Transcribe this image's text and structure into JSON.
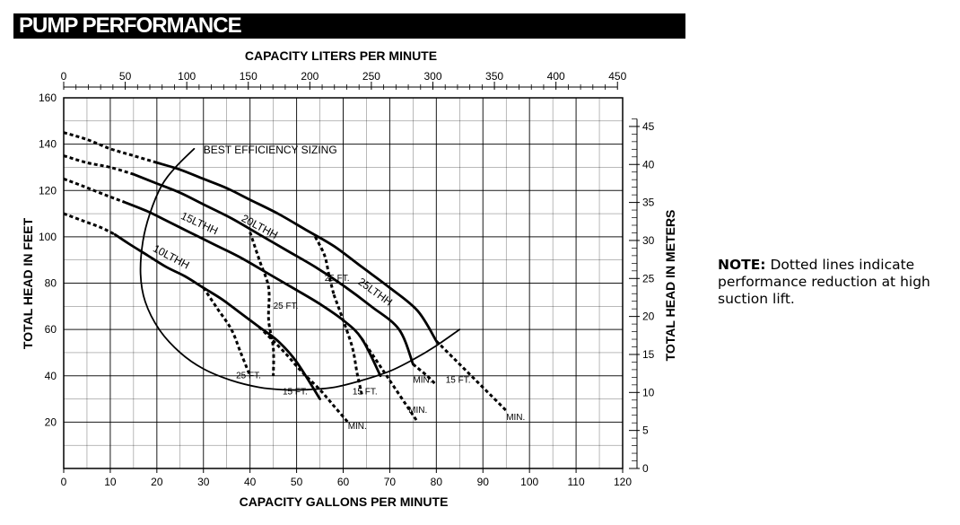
{
  "title": "PUMP PERFORMANCE",
  "note": {
    "label": "NOTE:",
    "text": "Dotted lines indicate performance reduction at high suction lift."
  },
  "chart_data": {
    "type": "line",
    "title": "PUMP PERFORMANCE",
    "xlabel": "CAPACITY GALLONS PER MINUTE",
    "ylabel": "TOTAL HEAD IN FEET",
    "x2label": "CAPACITY LITERS PER MINUTE",
    "y2label": "TOTAL HEAD IN METERS",
    "xlim": [
      0,
      120
    ],
    "ylim": [
      0,
      160
    ],
    "x_ticks": [
      0,
      10,
      20,
      30,
      40,
      50,
      60,
      70,
      80,
      90,
      100,
      110,
      120
    ],
    "y_ticks": [
      20,
      40,
      60,
      80,
      100,
      120,
      140,
      160
    ],
    "x2_ticks": [
      0,
      50,
      100,
      150,
      200,
      250,
      300,
      350,
      400,
      450
    ],
    "y2_ticks": [
      0,
      5,
      10,
      15,
      20,
      25,
      30,
      35,
      40,
      45
    ],
    "grid": true,
    "series": [
      {
        "name": "10LTHH",
        "style": "solid",
        "points": [
          [
            11,
            101
          ],
          [
            14,
            97
          ],
          [
            18,
            92
          ],
          [
            22,
            87
          ],
          [
            26,
            83
          ],
          [
            30,
            78
          ],
          [
            34,
            73
          ],
          [
            38,
            67
          ],
          [
            42,
            61
          ],
          [
            46,
            55
          ],
          [
            50,
            46
          ],
          [
            55,
            30
          ]
        ]
      },
      {
        "name": "10LTHH-high-lift",
        "style": "dotted",
        "points": [
          [
            0,
            110
          ],
          [
            4,
            107
          ],
          [
            8,
            104
          ],
          [
            11,
            101
          ]
        ]
      },
      {
        "name": "15LTHH",
        "style": "solid",
        "points": [
          [
            13,
            115
          ],
          [
            18,
            111
          ],
          [
            22,
            107
          ],
          [
            27,
            102
          ],
          [
            32,
            97
          ],
          [
            38,
            91
          ],
          [
            44,
            84
          ],
          [
            50,
            77
          ],
          [
            55,
            71
          ],
          [
            60,
            64
          ],
          [
            64,
            56
          ],
          [
            68,
            40
          ]
        ]
      },
      {
        "name": "15LTHH-high-lift",
        "style": "dotted",
        "points": [
          [
            0,
            125
          ],
          [
            4,
            122
          ],
          [
            9,
            118
          ],
          [
            13,
            115
          ]
        ]
      },
      {
        "name": "20LTHH",
        "style": "solid",
        "points": [
          [
            15,
            127
          ],
          [
            20,
            123
          ],
          [
            25,
            119
          ],
          [
            30,
            114
          ],
          [
            36,
            108
          ],
          [
            42,
            101
          ],
          [
            48,
            94
          ],
          [
            54,
            87
          ],
          [
            60,
            79
          ],
          [
            66,
            70
          ],
          [
            72,
            60
          ],
          [
            75,
            45
          ]
        ]
      },
      {
        "name": "20LTHH-high-lift",
        "style": "dotted",
        "points": [
          [
            0,
            135
          ],
          [
            5,
            132
          ],
          [
            10,
            130
          ],
          [
            15,
            127
          ]
        ]
      },
      {
        "name": "25LTHH",
        "style": "solid",
        "points": [
          [
            20,
            132
          ],
          [
            25,
            129
          ],
          [
            30,
            125
          ],
          [
            35,
            121
          ],
          [
            40,
            116
          ],
          [
            46,
            110
          ],
          [
            52,
            103
          ],
          [
            58,
            96
          ],
          [
            64,
            87
          ],
          [
            70,
            78
          ],
          [
            76,
            68
          ],
          [
            80,
            55
          ]
        ]
      },
      {
        "name": "25LTHH-high-lift",
        "style": "dotted",
        "points": [
          [
            0,
            145
          ],
          [
            5,
            142
          ],
          [
            10,
            138
          ],
          [
            15,
            135
          ],
          [
            20,
            132
          ]
        ]
      },
      {
        "name": "BEST EFFICIENCY SIZING",
        "style": "solid",
        "points": [
          [
            28,
            138
          ],
          [
            24,
            130
          ],
          [
            21,
            122
          ],
          [
            18.5,
            110
          ],
          [
            17,
            98
          ],
          [
            16.5,
            84
          ],
          [
            17.5,
            72
          ],
          [
            20.5,
            60
          ],
          [
            25,
            50
          ],
          [
            30,
            43
          ],
          [
            36,
            38
          ],
          [
            42,
            35
          ],
          [
            47,
            34
          ],
          [
            52,
            34
          ],
          [
            58,
            35
          ],
          [
            64,
            38
          ],
          [
            70,
            42
          ],
          [
            75,
            47
          ],
          [
            80,
            53
          ],
          [
            85,
            60
          ]
        ]
      },
      {
        "name": "10LTHH MIN.",
        "style": "dotted",
        "points": [
          [
            42,
            61
          ],
          [
            47,
            51
          ],
          [
            51,
            42
          ],
          [
            55,
            34
          ],
          [
            58,
            27
          ],
          [
            61,
            20
          ]
        ]
      },
      {
        "name": "15LTHH MIN.",
        "style": "dotted",
        "points": [
          [
            64,
            56
          ],
          [
            68,
            44
          ],
          [
            71,
            35
          ],
          [
            74,
            26
          ],
          [
            76,
            20
          ]
        ]
      },
      {
        "name": "20LTHH MIN.",
        "style": "dotted",
        "points": [
          [
            75,
            45
          ],
          [
            78,
            40
          ],
          [
            80,
            36
          ]
        ]
      },
      {
        "name": "25LTHH MIN.",
        "style": "dotted",
        "points": [
          [
            80,
            55
          ],
          [
            84,
            47
          ],
          [
            88,
            39
          ],
          [
            92,
            31
          ],
          [
            95,
            25
          ]
        ]
      },
      {
        "name": "25 FT. (left)",
        "style": "dotted",
        "points": [
          [
            30,
            78
          ],
          [
            33,
            69
          ],
          [
            36,
            60
          ],
          [
            38,
            50
          ],
          [
            40,
            40
          ]
        ]
      },
      {
        "name": "15 FT. (left)",
        "style": "dotted",
        "points": [
          [
            40,
            102
          ],
          [
            42,
            90
          ],
          [
            44,
            78
          ],
          [
            44,
            64
          ],
          [
            45,
            52
          ],
          [
            45,
            40
          ]
        ]
      },
      {
        "name": "25 FT. (right)",
        "style": "dotted",
        "points": [
          [
            54,
            100
          ],
          [
            56,
            92
          ],
          [
            57,
            83
          ],
          [
            58,
            75
          ]
        ]
      },
      {
        "name": "15 FT. (right)",
        "style": "dotted",
        "points": [
          [
            58,
            75
          ],
          [
            60,
            64
          ],
          [
            62,
            52
          ],
          [
            63,
            41
          ],
          [
            64,
            32
          ]
        ]
      }
    ],
    "annotations": [
      {
        "text": "BEST EFFICIENCY SIZING",
        "x": 30,
        "y": 136
      },
      {
        "text": "25LTHH",
        "x": 63,
        "y": 80
      },
      {
        "text": "20LTHH",
        "x": 38,
        "y": 107
      },
      {
        "text": "15LTHH",
        "x": 25,
        "y": 108
      },
      {
        "text": "10LTHH",
        "x": 19,
        "y": 94
      },
      {
        "text": "25 FT.",
        "x": 56,
        "y": 81
      },
      {
        "text": "25 FT.",
        "x": 45,
        "y": 69
      },
      {
        "text": "25 FT.",
        "x": 37,
        "y": 39
      },
      {
        "text": "15 FT.",
        "x": 47,
        "y": 32
      },
      {
        "text": "15 FT.",
        "x": 62,
        "y": 32
      },
      {
        "text": "15 FT.",
        "x": 82,
        "y": 37
      },
      {
        "text": "MIN.",
        "x": 75,
        "y": 37
      },
      {
        "text": "MIN.",
        "x": 95,
        "y": 21
      },
      {
        "text": "MIN.",
        "x": 74,
        "y": 24
      },
      {
        "text": "MIN.",
        "x": 61,
        "y": 17
      }
    ]
  }
}
